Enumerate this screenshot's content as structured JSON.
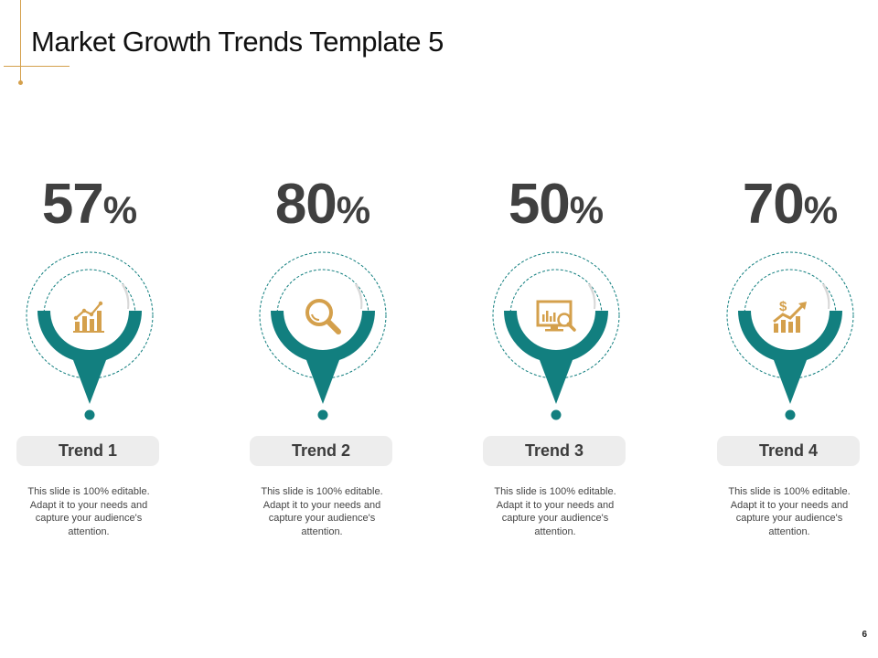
{
  "slide": {
    "title": "Market Growth Trends Template 5",
    "page_number": "6"
  },
  "colors": {
    "teal": "#127f7f",
    "gold": "#d4a04c",
    "text_dark": "#404040",
    "pill_bg": "#ededed"
  },
  "trends": [
    {
      "value": "57",
      "unit": "%",
      "label": "Trend 1",
      "icon": "bar-chart-growth-icon",
      "description": "This slide is 100% editable. Adapt it to your needs and capture your audience's attention."
    },
    {
      "value": "80",
      "unit": "%",
      "label": "Trend 2",
      "icon": "magnifier-icon",
      "description": "This slide is 100% editable. Adapt it to your needs and capture your audience's attention."
    },
    {
      "value": "50",
      "unit": "%",
      "label": "Trend 3",
      "icon": "monitor-analytics-icon",
      "description": "This slide is 100% editable. Adapt it to your needs and capture your audience's attention."
    },
    {
      "value": "70",
      "unit": "%",
      "label": "Trend 4",
      "icon": "dollar-growth-icon",
      "description": "This slide is 100% editable. Adapt it to your needs and capture your audience's attention."
    }
  ]
}
